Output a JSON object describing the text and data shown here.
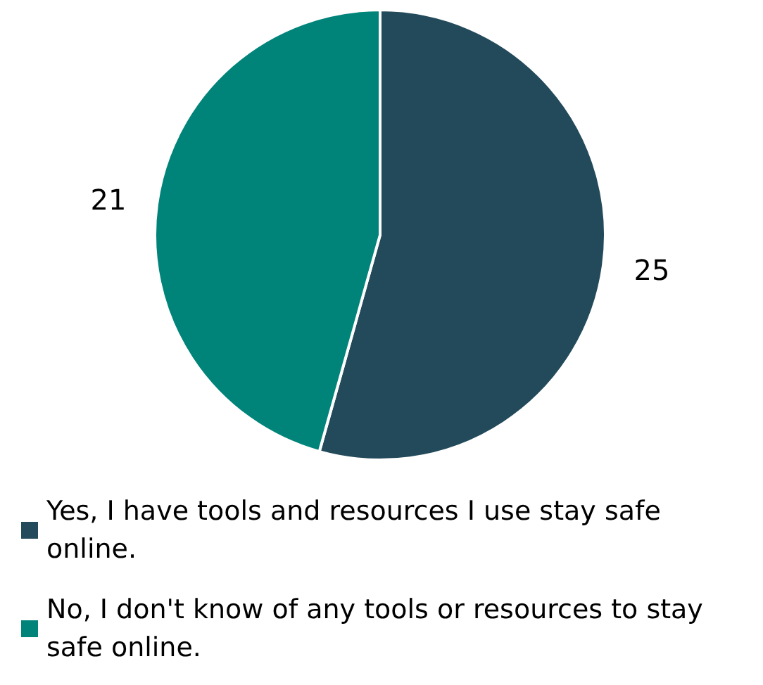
{
  "chart_data": {
    "type": "pie",
    "categories": [
      "Yes, I have tools and resources I use stay safe online.",
      "No, I don't know of any tools or resources to stay safe online."
    ],
    "values": [
      25,
      21
    ],
    "colors": [
      "#234a5a",
      "#00847a"
    ],
    "data_labels": true,
    "legend": "bottom"
  }
}
